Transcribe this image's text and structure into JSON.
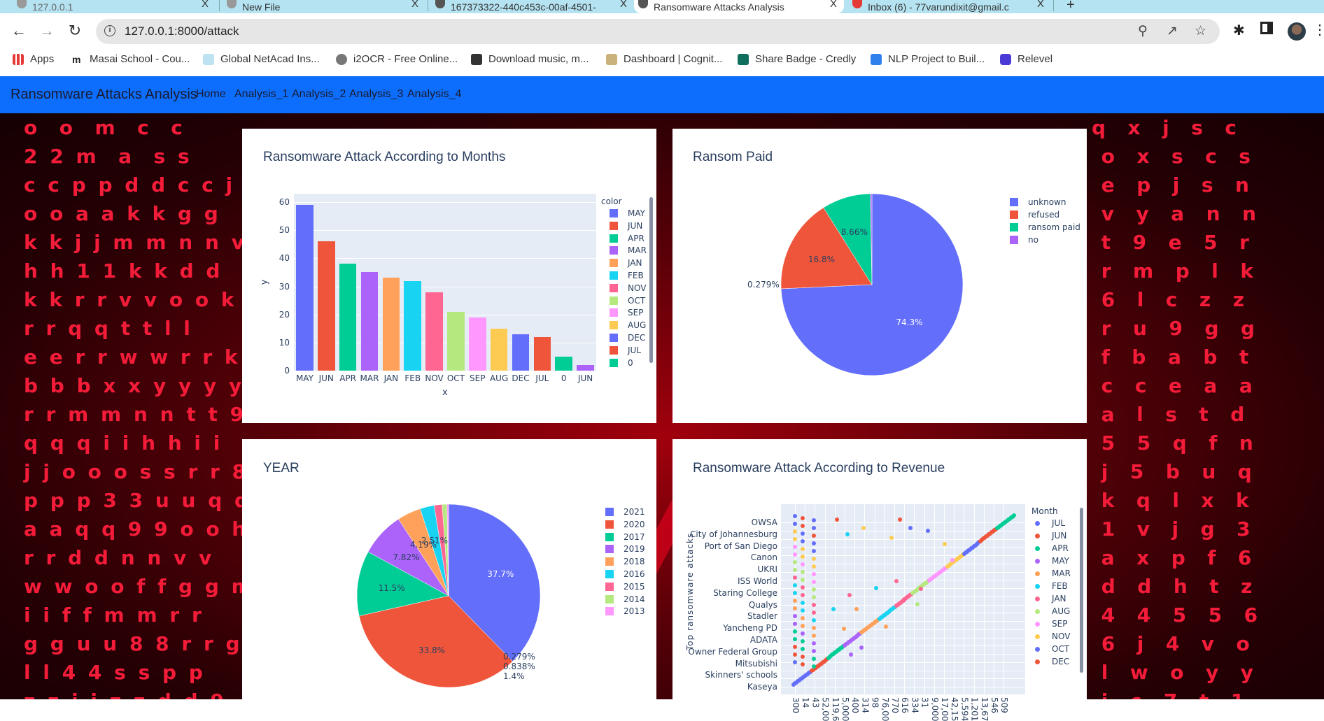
{
  "browser": {
    "tabs": [
      {
        "title": "127.0.0.1",
        "active": false
      },
      {
        "title": "New File",
        "active": false
      },
      {
        "title": "167373322-440c453c-00af-4501-",
        "active": false
      },
      {
        "title": "Ransomware Attacks Analysis",
        "active": true
      },
      {
        "title": "Inbox (6) - 77varundixit@gmail.c",
        "active": false
      }
    ],
    "new_tab": "+",
    "close": "X",
    "url": "127.0.0.1:8000/attack",
    "bookmarks": [
      {
        "label": "Apps",
        "color": "#e53935"
      },
      {
        "label": "Masai School - Cou...",
        "color": "#222222"
      },
      {
        "label": "Global NetAcad Ins...",
        "color": "#3aa5d8"
      },
      {
        "label": "i2OCR - Free Online...",
        "color": "#666666"
      },
      {
        "label": "Download music, m...",
        "color": "#333333"
      },
      {
        "label": "Dashboard | Cognit...",
        "color": "#8a6d3b"
      },
      {
        "label": "Share Badge - Credly",
        "color": "#0f6f5c"
      },
      {
        "label": "NLP Project to Buil...",
        "color": "#2f80ed"
      },
      {
        "label": "Relevel",
        "color": "#4b3bd6"
      }
    ]
  },
  "navbar": {
    "brand": "Ransomware Attacks Analysis",
    "links": [
      "Home",
      "Analysis_1",
      "Analysis_2",
      "Analysis_3",
      "Analysis_4"
    ],
    "color": "#0d6efd"
  },
  "charts": {
    "months": {
      "title": "Ransomware Attack According to Months",
      "xlabel": "x",
      "ylabel": "y",
      "legend_title": "color",
      "yticks": [
        "0",
        "10",
        "20",
        "30",
        "40",
        "50",
        "60"
      ]
    },
    "ransom": {
      "title": "Ransom Paid"
    },
    "year": {
      "title": "YEAR"
    },
    "revenue": {
      "title": "Ransomware Attack According to Revenue",
      "ylabel": "Top ransomware attacks",
      "legend_title": "Month"
    }
  },
  "chart_data": [
    {
      "type": "bar",
      "title": "Ransomware Attack According to Months",
      "xlabel": "x",
      "ylabel": "y",
      "ylim": [
        0,
        60
      ],
      "legend_title": "color",
      "categories": [
        "MAY",
        "JUN",
        "APR",
        "MAR",
        "JAN",
        "FEB",
        "NOV",
        "OCT",
        "SEP",
        "AUG",
        "DEC",
        "JUL",
        "0",
        "JUN"
      ],
      "values": [
        59,
        46,
        38,
        35,
        33,
        32,
        28,
        21,
        19,
        15,
        13,
        12,
        5,
        2
      ],
      "colors": [
        "#636efa",
        "#ef553b",
        "#00cc96",
        "#ab63fa",
        "#ffa15a",
        "#19d3f3",
        "#ff6692",
        "#b6e880",
        "#ff97ff",
        "#fecb52",
        "#636efa",
        "#ef553b",
        "#00cc96",
        "#ab63fa"
      ],
      "legend": [
        "MAY",
        "JUN",
        "APR",
        "MAR",
        "JAN",
        "FEB",
        "NOV",
        "OCT",
        "SEP",
        "AUG",
        "DEC",
        "JUL",
        "0"
      ],
      "grid": true,
      "legend_position": "right"
    },
    {
      "type": "pie",
      "title": "Ransom Paid",
      "labels": [
        "unknown",
        "refused",
        "ransom paid",
        "no"
      ],
      "values": [
        74.3,
        16.8,
        8.66,
        0.279
      ],
      "text": [
        "74.3%",
        "16.8%",
        "8.66%",
        "0.279%"
      ],
      "colors": [
        "#636efa",
        "#ef553b",
        "#00cc96",
        "#ab63fa"
      ],
      "legend_position": "right"
    },
    {
      "type": "pie",
      "title": "YEAR",
      "labels": [
        "2021",
        "2020",
        "2017",
        "2019",
        "2018",
        "2016",
        "2015",
        "2014",
        "2013"
      ],
      "values": [
        37.7,
        33.8,
        11.5,
        7.82,
        4.19,
        2.51,
        1.4,
        0.838,
        0.279
      ],
      "text": [
        "37.7%",
        "33.8%",
        "11.5%",
        "7.82%",
        "4.19%",
        "2.51%",
        "1.4%",
        "0.838%",
        "0.279%"
      ],
      "colors": [
        "#636efa",
        "#ef553b",
        "#00cc96",
        "#ab63fa",
        "#ffa15a",
        "#19d3f3",
        "#ff6692",
        "#b6e880",
        "#ff97ff"
      ],
      "legend_position": "right"
    },
    {
      "type": "scatter",
      "title": "Ransomware Attack According to Revenue",
      "ylabel": "Top ransomware attacks",
      "legend_title": "Month",
      "y_tick_labels": [
        "OWSA",
        "City of Johannesburg",
        "Port of San Diego",
        "Canon",
        "UKRI",
        "ISS World",
        "Staring College",
        "Qualys",
        "Stadler",
        "Yancheng PD",
        "ADATA",
        "Owner Federal Group",
        "Mitsubishi",
        "Skinners' schools",
        "Kaseya"
      ],
      "x_tick_labels": [
        "300",
        "14",
        "43",
        "52,00",
        "119,6",
        "5,000",
        "400",
        "314",
        "98",
        "76,00",
        "770",
        "616",
        "334",
        "31",
        "9,000",
        "17,00",
        "42,15",
        "5,594",
        "1,201",
        "13,67",
        "546",
        "509"
      ],
      "legend": [
        {
          "name": "JUL",
          "color": "#636efa"
        },
        {
          "name": "JUN",
          "color": "#ef553b"
        },
        {
          "name": "APR",
          "color": "#00cc96"
        },
        {
          "name": "MAY",
          "color": "#ab63fa"
        },
        {
          "name": "MAR",
          "color": "#ffa15a"
        },
        {
          "name": "FEB",
          "color": "#19d3f3"
        },
        {
          "name": "JAN",
          "color": "#ff6692"
        },
        {
          "name": "AUG",
          "color": "#b6e880"
        },
        {
          "name": "SEP",
          "color": "#ff97ff"
        },
        {
          "name": "NOV",
          "color": "#fecb52"
        },
        {
          "name": "OCT",
          "color": "#636efa"
        },
        {
          "name": "DEC",
          "color": "#ef553b"
        }
      ],
      "diagonal_series_order": [
        "JUL",
        "JUN",
        "APR",
        "MAY",
        "MAR",
        "FEB",
        "JAN",
        "AUG",
        "SEP",
        "NOV",
        "OCT",
        "DEC",
        "APR"
      ],
      "grid": true,
      "legend_position": "right"
    }
  ]
}
